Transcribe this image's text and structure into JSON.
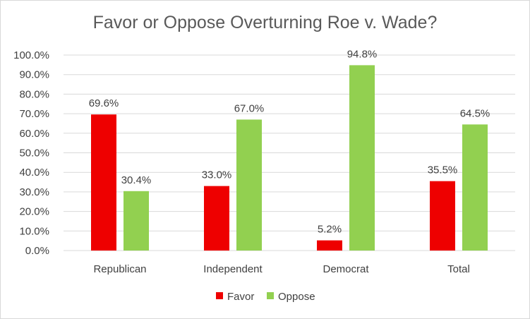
{
  "chart_data": {
    "type": "bar",
    "title": "Favor or Oppose Overturning Roe v. Wade?",
    "categories": [
      "Republican",
      "Independent",
      "Democrat",
      "Total"
    ],
    "series": [
      {
        "name": "Favor",
        "values": [
          69.6,
          33.0,
          5.2,
          35.5
        ],
        "labels": [
          "69.6%",
          "33.0%",
          "5.2%",
          "35.5%"
        ],
        "color": "#ee0000"
      },
      {
        "name": "Oppose",
        "values": [
          30.4,
          67.0,
          94.8,
          64.5
        ],
        "labels": [
          "30.4%",
          "67.0%",
          "94.8%",
          "64.5%"
        ],
        "color": "#92d050"
      }
    ],
    "yticks": [
      "0.0%",
      "10.0%",
      "20.0%",
      "30.0%",
      "40.0%",
      "50.0%",
      "60.0%",
      "70.0%",
      "80.0%",
      "90.0%",
      "100.0%"
    ],
    "ylim": [
      0,
      100
    ],
    "grid": true,
    "legend": "bottom"
  }
}
